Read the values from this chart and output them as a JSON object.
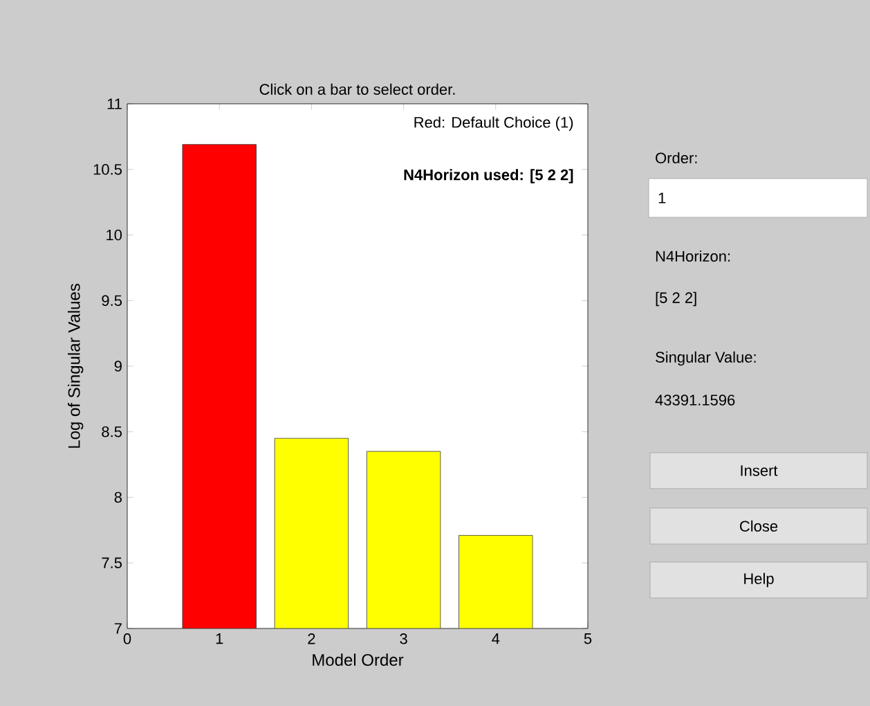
{
  "chart_data": {
    "type": "bar",
    "title": "Click on a bar to select order.",
    "xlabel": "Model Order",
    "ylabel": "Log of Singular Values",
    "x": [
      1,
      2,
      3,
      4
    ],
    "values": [
      10.69,
      8.45,
      8.35,
      7.71
    ],
    "colors": [
      "#ff0000",
      "#ffff00",
      "#ffff00",
      "#ffff00"
    ],
    "xlim": [
      0,
      5
    ],
    "xticks": [
      0,
      1,
      2,
      3,
      4,
      5
    ],
    "ylim": [
      7,
      11
    ],
    "yticks": [
      7,
      7.5,
      8,
      8.5,
      9,
      9.5,
      10,
      10.5,
      11
    ],
    "grid": false,
    "annotations": [
      "Red: Default Choice (1)",
      "N4Horizon used: [5 2 2]",
      "Order:",
      "1",
      "N4Horizon:",
      "[5 2 2]",
      "Singular Value:",
      "43391.1596",
      "Insert",
      "Close",
      "Help"
    ]
  }
}
